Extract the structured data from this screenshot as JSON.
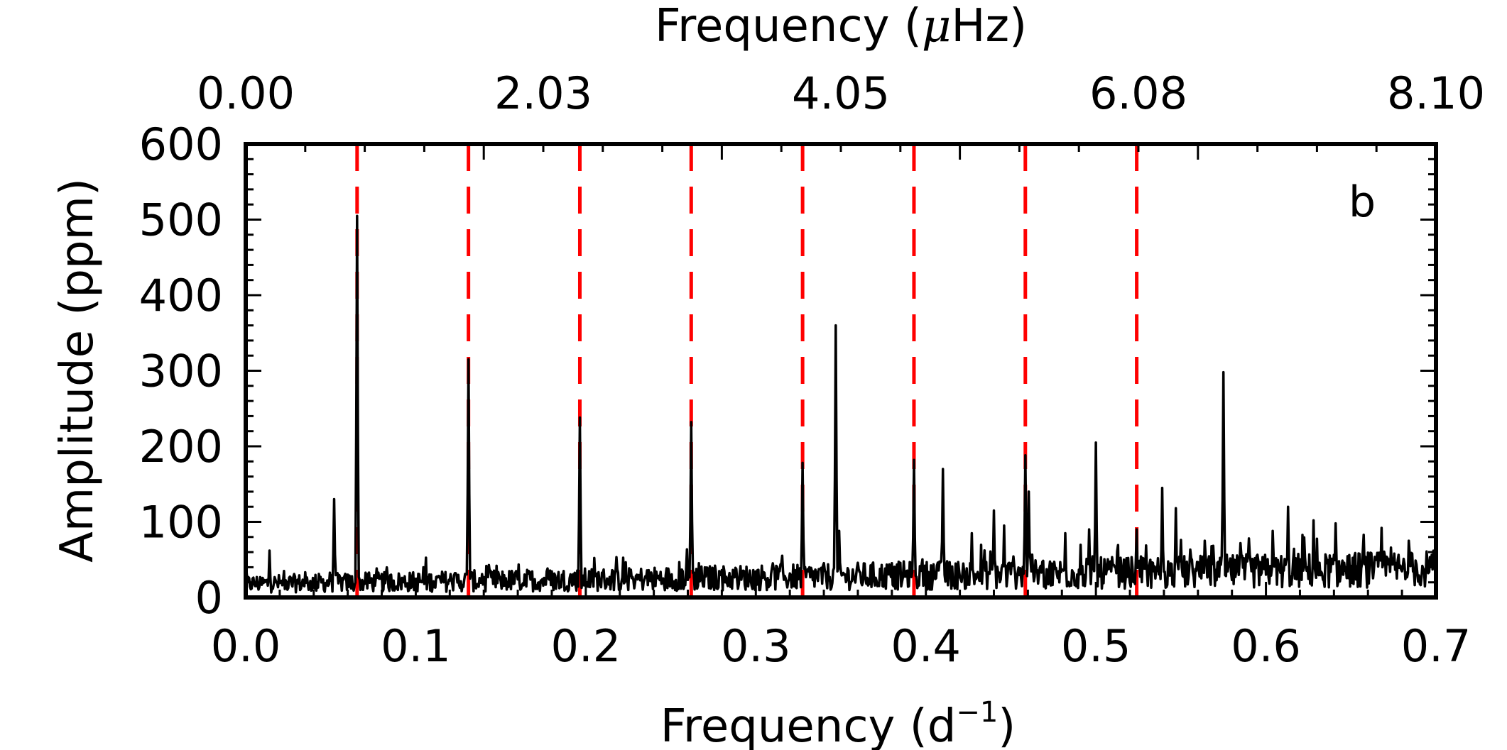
{
  "chart_data": {
    "type": "line",
    "panel_label": "b",
    "xlabel_bottom": "Frequency (d",
    "xlabel_bottom_sup": "−1",
    "xlabel_bottom_tail": ")",
    "xlabel_top_pre": "Frequency (",
    "xlabel_top_mu": "μ",
    "xlabel_top_post": "Hz)",
    "ylabel": "Amplitude (ppm)",
    "xlim": [
      0.0,
      0.7
    ],
    "ylim": [
      0,
      600
    ],
    "x_ticks": [
      "0.0",
      "0.1",
      "0.2",
      "0.3",
      "0.4",
      "0.5",
      "0.6",
      "0.7"
    ],
    "y_ticks": [
      "0",
      "100",
      "200",
      "300",
      "400",
      "500",
      "600"
    ],
    "top_ticks": [
      {
        "label": "0.00",
        "value": 0.0
      },
      {
        "label": "2.03",
        "value": 0.175
      },
      {
        "label": "4.05",
        "value": 0.35
      },
      {
        "label": "6.08",
        "value": 0.525
      },
      {
        "label": "8.10",
        "value": 0.7
      }
    ],
    "harmonic_lines": {
      "color": "#ff0000",
      "x": [
        0.0655,
        0.131,
        0.1965,
        0.262,
        0.3275,
        0.393,
        0.4585,
        0.524
      ]
    },
    "line_color": "#000000",
    "noise_floor_ppm": 18,
    "peaks": [
      {
        "x": 0.014,
        "y": 62
      },
      {
        "x": 0.052,
        "y": 130
      },
      {
        "x": 0.0655,
        "y": 505
      },
      {
        "x": 0.131,
        "y": 315
      },
      {
        "x": 0.1965,
        "y": 238
      },
      {
        "x": 0.262,
        "y": 232
      },
      {
        "x": 0.3275,
        "y": 178
      },
      {
        "x": 0.347,
        "y": 360
      },
      {
        "x": 0.349,
        "y": 88
      },
      {
        "x": 0.393,
        "y": 182
      },
      {
        "x": 0.41,
        "y": 170
      },
      {
        "x": 0.427,
        "y": 85
      },
      {
        "x": 0.44,
        "y": 115
      },
      {
        "x": 0.446,
        "y": 95
      },
      {
        "x": 0.4585,
        "y": 188
      },
      {
        "x": 0.4605,
        "y": 140
      },
      {
        "x": 0.482,
        "y": 85
      },
      {
        "x": 0.496,
        "y": 90
      },
      {
        "x": 0.5,
        "y": 205
      },
      {
        "x": 0.524,
        "y": 90
      },
      {
        "x": 0.539,
        "y": 145
      },
      {
        "x": 0.547,
        "y": 118
      },
      {
        "x": 0.564,
        "y": 75
      },
      {
        "x": 0.575,
        "y": 298
      },
      {
        "x": 0.59,
        "y": 78
      },
      {
        "x": 0.604,
        "y": 88
      },
      {
        "x": 0.613,
        "y": 120
      },
      {
        "x": 0.628,
        "y": 102
      },
      {
        "x": 0.641,
        "y": 98
      },
      {
        "x": 0.668,
        "y": 92
      },
      {
        "x": 0.684,
        "y": 75
      }
    ]
  }
}
